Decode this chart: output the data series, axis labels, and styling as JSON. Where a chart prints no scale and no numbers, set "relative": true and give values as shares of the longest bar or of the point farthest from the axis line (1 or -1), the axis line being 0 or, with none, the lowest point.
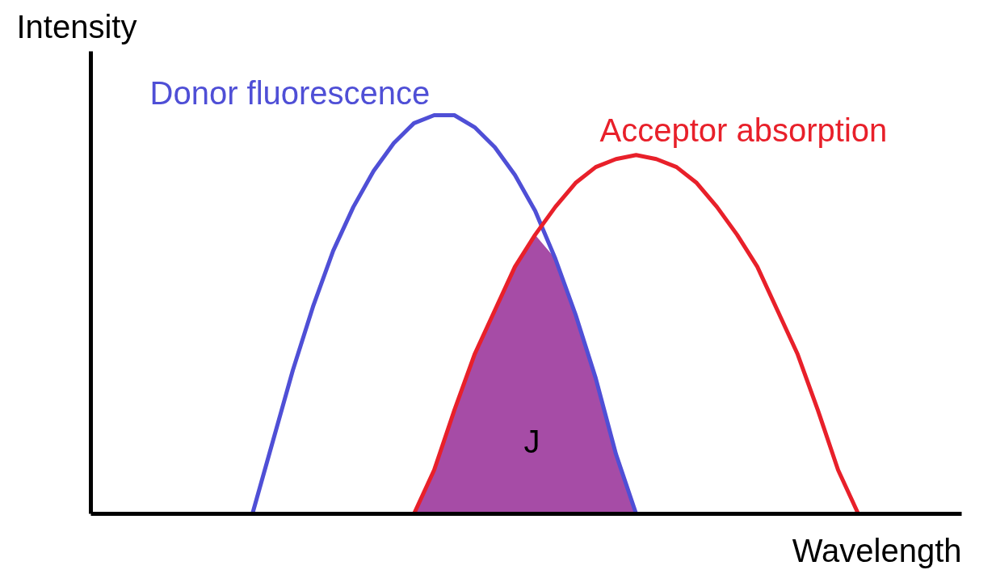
{
  "chart_data": {
    "type": "line",
    "relative": true,
    "xlabel": "Wavelength",
    "ylabel": "Intensity",
    "grid": false,
    "categories": [
      null,
      null,
      null,
      null,
      null,
      null,
      null,
      null,
      null,
      null,
      null,
      null,
      null,
      null,
      null,
      null,
      null,
      null,
      null,
      null,
      null,
      null,
      null,
      null,
      null,
      null,
      null,
      null,
      null,
      null,
      null,
      null,
      null,
      null,
      null,
      null,
      null,
      null,
      null,
      null,
      null,
      null,
      null,
      null
    ],
    "series": [
      {
        "type": "area",
        "color": "#a64ca6",
        "values": [
          null,
          null,
          null,
          null,
          null,
          null,
          null,
          null,
          null,
          null,
          null,
          null,
          null,
          null,
          null,
          null,
          0,
          0.11,
          0.26,
          0.4,
          0.51,
          0.62,
          0.7,
          0.64,
          0.5,
          0.34,
          0.15,
          0,
          null,
          null,
          null,
          null,
          null,
          null,
          null,
          null,
          null,
          null,
          null,
          null,
          null,
          null,
          null,
          null
        ]
      },
      {
        "name": "Donor fluorescence",
        "color": "#4f4fd6",
        "values": [
          null,
          null,
          null,
          null,
          null,
          null,
          null,
          null,
          0,
          0.18,
          0.36,
          0.52,
          0.66,
          0.77,
          0.86,
          0.93,
          0.98,
          1.0,
          1.0,
          0.97,
          0.92,
          0.85,
          0.76,
          0.64,
          0.5,
          0.34,
          0.15,
          0,
          null,
          null,
          null,
          null,
          null,
          null,
          null,
          null,
          null,
          null,
          null,
          null,
          null,
          null,
          null,
          null
        ]
      },
      {
        "name": "Acceptor absorption",
        "color": "#e8202a",
        "values": [
          null,
          null,
          null,
          null,
          null,
          null,
          null,
          null,
          null,
          null,
          null,
          null,
          null,
          null,
          null,
          null,
          0,
          0.11,
          0.26,
          0.4,
          0.51,
          0.62,
          0.7,
          0.77,
          0.83,
          0.87,
          0.89,
          0.9,
          0.89,
          0.87,
          0.83,
          0.77,
          0.7,
          0.62,
          0.51,
          0.4,
          0.26,
          0.11,
          0,
          null,
          null,
          null,
          null,
          null
        ]
      }
    ],
    "annotations": [
      "J"
    ]
  }
}
